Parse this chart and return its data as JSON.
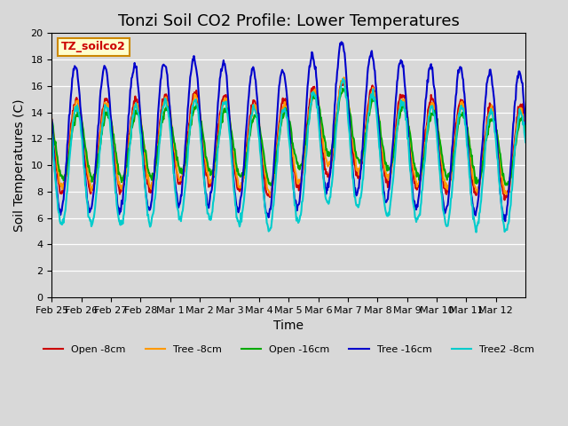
{
  "title": "Tonzi Soil CO2 Profile: Lower Temperatures",
  "xlabel": "Time",
  "ylabel": "Soil Temperatures (C)",
  "ylim": [
    0,
    20
  ],
  "yticks": [
    0,
    2,
    4,
    6,
    8,
    10,
    12,
    14,
    16,
    18,
    20
  ],
  "xtick_labels": [
    "Feb 25",
    "Feb 26",
    "Feb 27",
    "Feb 28",
    "Mar 1",
    "Mar 2",
    "Mar 3",
    "Mar 4",
    "Mar 5",
    "Mar 6",
    "Mar 7",
    "Mar 8",
    "Mar 9",
    "Mar 10",
    "Mar 11",
    "Mar 12"
  ],
  "bg_color": "#d8d8d8",
  "series": [
    {
      "label": "Open -8cm",
      "color": "#cc0000",
      "lw": 1.5
    },
    {
      "label": "Tree -8cm",
      "color": "#ff9900",
      "lw": 1.5
    },
    {
      "label": "Open -16cm",
      "color": "#00aa00",
      "lw": 1.5
    },
    {
      "label": "Tree -16cm",
      "color": "#0000cc",
      "lw": 1.5
    },
    {
      "label": "Tree2 -8cm",
      "color": "#00cccc",
      "lw": 1.5
    }
  ],
  "watermark": "TZ_soilco2",
  "title_fontsize": 13,
  "axis_label_fontsize": 10,
  "tick_fontsize": 8
}
